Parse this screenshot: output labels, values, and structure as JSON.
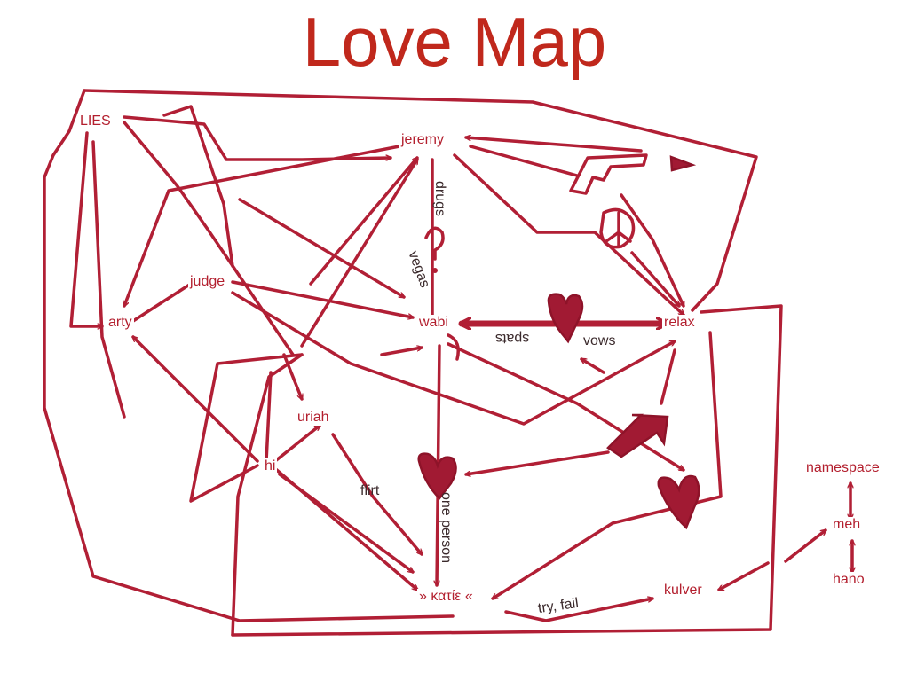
{
  "title": "Love Map",
  "nodes": {
    "lies": "LIES",
    "jeremy": "jeremy",
    "judge": "judge",
    "arty": "arty",
    "wabi": "wabi",
    "relax": "relax",
    "uriah": "uriah",
    "hi": "hi",
    "katie": "» κατίε «",
    "kulver": "kulver",
    "namespace": "namespace",
    "meh": "meh",
    "hano": "hano"
  },
  "edge_labels": {
    "drugs": "drugs",
    "vegas": "vegas",
    "spats": "spats",
    "vows": "vows",
    "flirt": "flirt",
    "one_person": "one person",
    "try_fail": "try, fail"
  },
  "icons": [
    "question-mark-icon",
    "peace-sign-icon",
    "pistol-icon",
    "heart-icon",
    "heart-icon",
    "heart-icon",
    "arrow-sign-icon",
    "flag-icon"
  ],
  "colors": {
    "title": "#c0281c",
    "ink": "#b11f35",
    "fill": "#a11a33"
  }
}
